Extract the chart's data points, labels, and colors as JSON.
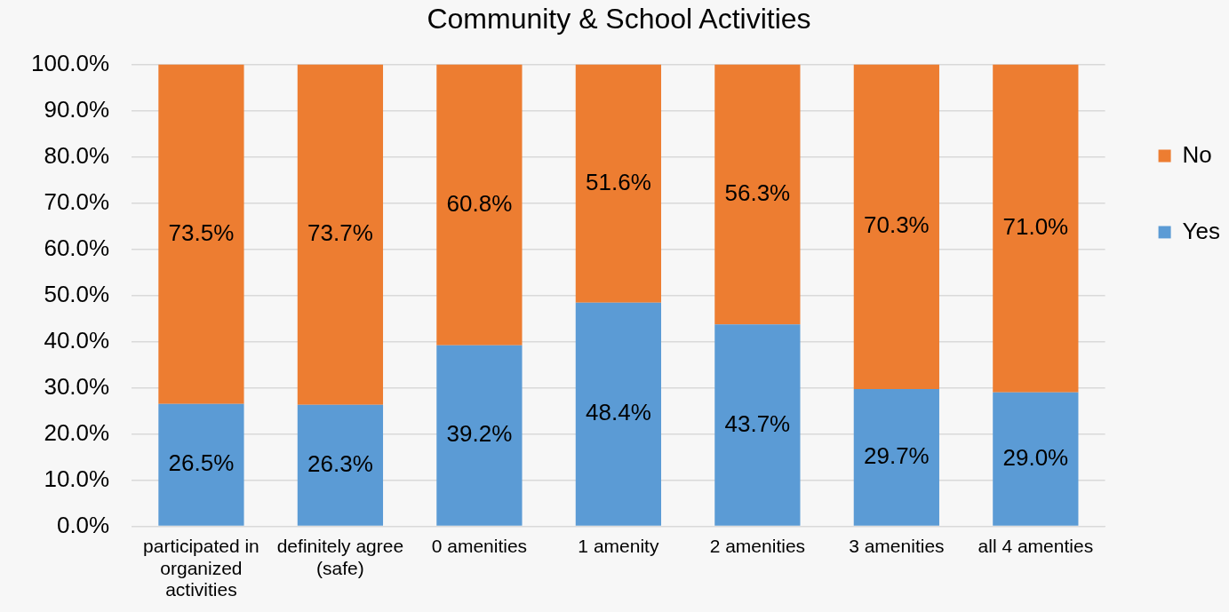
{
  "chart_data": {
    "type": "bar",
    "title": "Community & School Activities",
    "categories": [
      "participated in organized activities",
      "definitely agree (safe)",
      "0 amenities",
      "1 amenity",
      "2 amenities",
      "3 amenities",
      "all 4 amenties"
    ],
    "series": [
      {
        "name": "Yes",
        "color": "#5b9bd5",
        "values": [
          26.5,
          26.3,
          39.2,
          48.4,
          43.7,
          29.7,
          29.0
        ],
        "value_labels": [
          "26.5%",
          "26.3%",
          "39.2%",
          "48.4%",
          "43.7%",
          "29.7%",
          "29.0%"
        ]
      },
      {
        "name": "No",
        "color": "#ed7d31",
        "values": [
          73.5,
          73.7,
          60.8,
          51.6,
          56.3,
          70.3,
          71.0
        ],
        "value_labels": [
          "73.5%",
          "73.7%",
          "60.8%",
          "51.6%",
          "56.3%",
          "70.3%",
          "71.0%"
        ]
      }
    ],
    "stacked": true,
    "ylim": [
      0,
      100
    ],
    "yticks": [
      {
        "value": 0,
        "label": "0.0%"
      },
      {
        "value": 10,
        "label": "10.0%"
      },
      {
        "value": 20,
        "label": "20.0%"
      },
      {
        "value": 30,
        "label": "30.0%"
      },
      {
        "value": 40,
        "label": "40.0%"
      },
      {
        "value": 50,
        "label": "50.0%"
      },
      {
        "value": 60,
        "label": "60.0%"
      },
      {
        "value": 70,
        "label": "70.0%"
      },
      {
        "value": 80,
        "label": "80.0%"
      },
      {
        "value": 90,
        "label": "90.0%"
      },
      {
        "value": 100,
        "label": "100.0%"
      }
    ],
    "grid": "y",
    "legend": "right"
  }
}
